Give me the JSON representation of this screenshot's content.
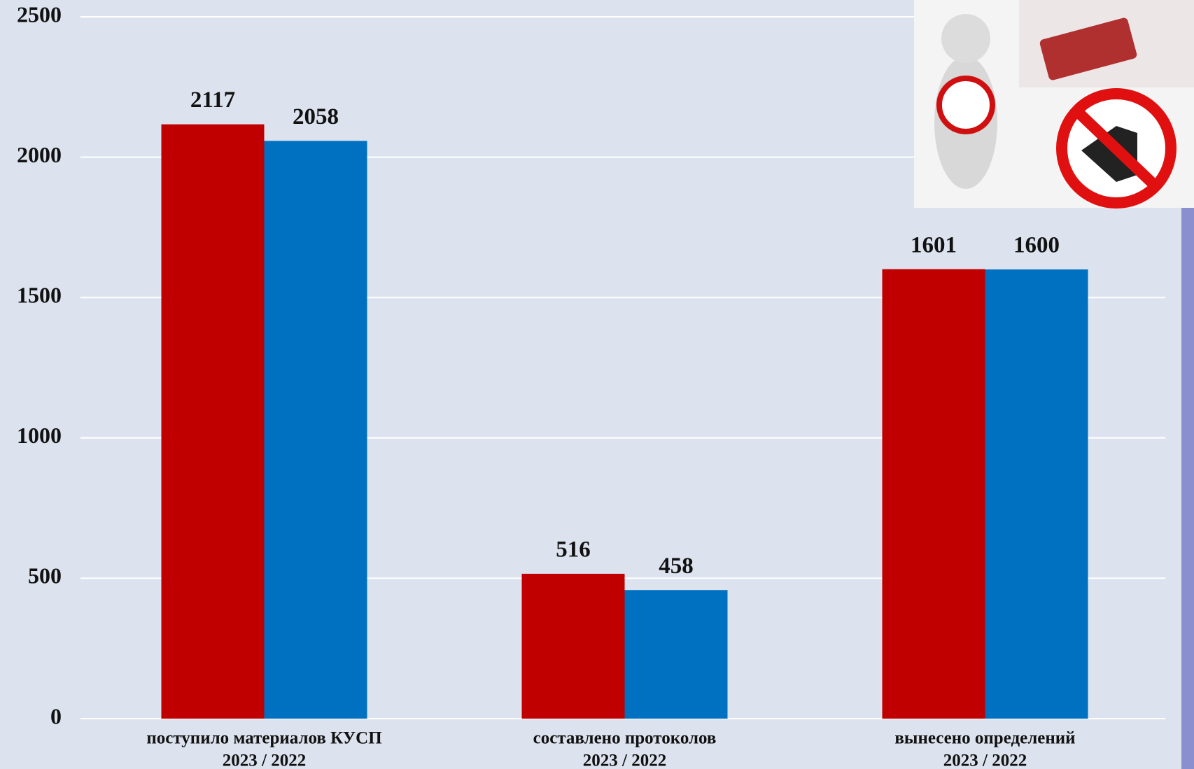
{
  "chart_data": {
    "type": "bar",
    "categories": [
      [
        "поступило материалов КУСП",
        "2023 / 2022"
      ],
      [
        "составлено протоколов",
        "2023 / 2022"
      ],
      [
        "вынесено определений",
        "2023 / 2022"
      ]
    ],
    "series": [
      {
        "color": "#c00000",
        "values": [
          2117,
          516,
          1601
        ]
      },
      {
        "color": "#0070c0",
        "values": [
          2058,
          458,
          1600
        ]
      }
    ],
    "ylim": [
      0,
      2500
    ],
    "yticks": [
      0,
      500,
      1000,
      1500,
      2000,
      2500
    ],
    "grid": true
  }
}
